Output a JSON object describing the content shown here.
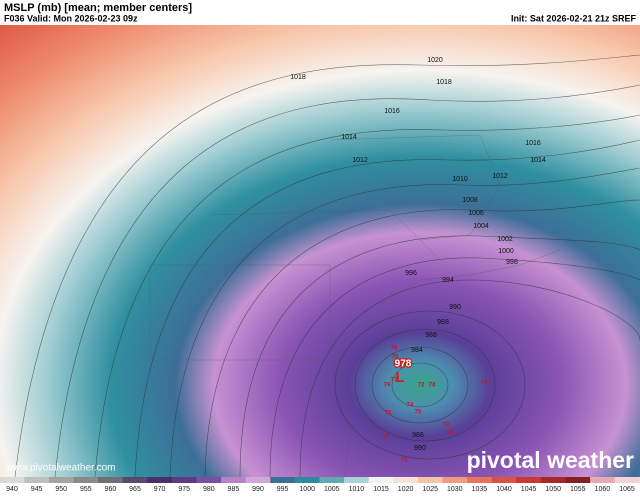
{
  "header": {
    "title": "MSLP (mb) [mean; member centers]",
    "valid": "F036 Valid: Mon 2026-02-23 09z",
    "init": "Init: Sat 2026-02-21 21z SREF"
  },
  "map": {
    "isobar_labels": [
      "1020",
      "1018",
      "1018",
      "1016",
      "1014",
      "1012",
      "1010",
      "1012",
      "1016",
      "1014",
      "1008",
      "1006",
      "1004",
      "1002",
      "1000",
      "998",
      "996",
      "994",
      "990",
      "988",
      "986",
      "984",
      "986",
      "990"
    ],
    "low_center": {
      "pressure": "978",
      "symbol": "L"
    },
    "member_centers": [
      "75",
      "76",
      "77",
      "79",
      "72",
      "74",
      "73",
      "78",
      "75",
      "72",
      "74",
      "77",
      "73",
      "74"
    ]
  },
  "colorbar": {
    "labels": [
      "940",
      "945",
      "950",
      "955",
      "960",
      "965",
      "970",
      "975",
      "980",
      "985",
      "990",
      "995",
      "1000",
      "1005",
      "1010",
      "1015",
      "1020",
      "1025",
      "1030",
      "1035",
      "1040",
      "1045",
      "1050",
      "1055",
      "1060",
      "1065"
    ],
    "colors": [
      "#d9d9d9",
      "#bfbfbf",
      "#a3a3a3",
      "#8a8a8a",
      "#6f6f78",
      "#5a4a6a",
      "#4b2f6b",
      "#5e3a86",
      "#7a4fa6",
      "#b583c6",
      "#d3a7d6",
      "#3a6f96",
      "#2f8a9e",
      "#5fa9b5",
      "#a9d2d6",
      "#eef3f2",
      "#f6e3d6",
      "#f6c3a8",
      "#f19c7b",
      "#e87559",
      "#dc5140",
      "#c8392f",
      "#a82828",
      "#842021",
      "#e7a9b3",
      "#f3d1d6"
    ]
  },
  "footer": {
    "website": "www.pivotalweather.com",
    "brand": "pivotal weather"
  }
}
